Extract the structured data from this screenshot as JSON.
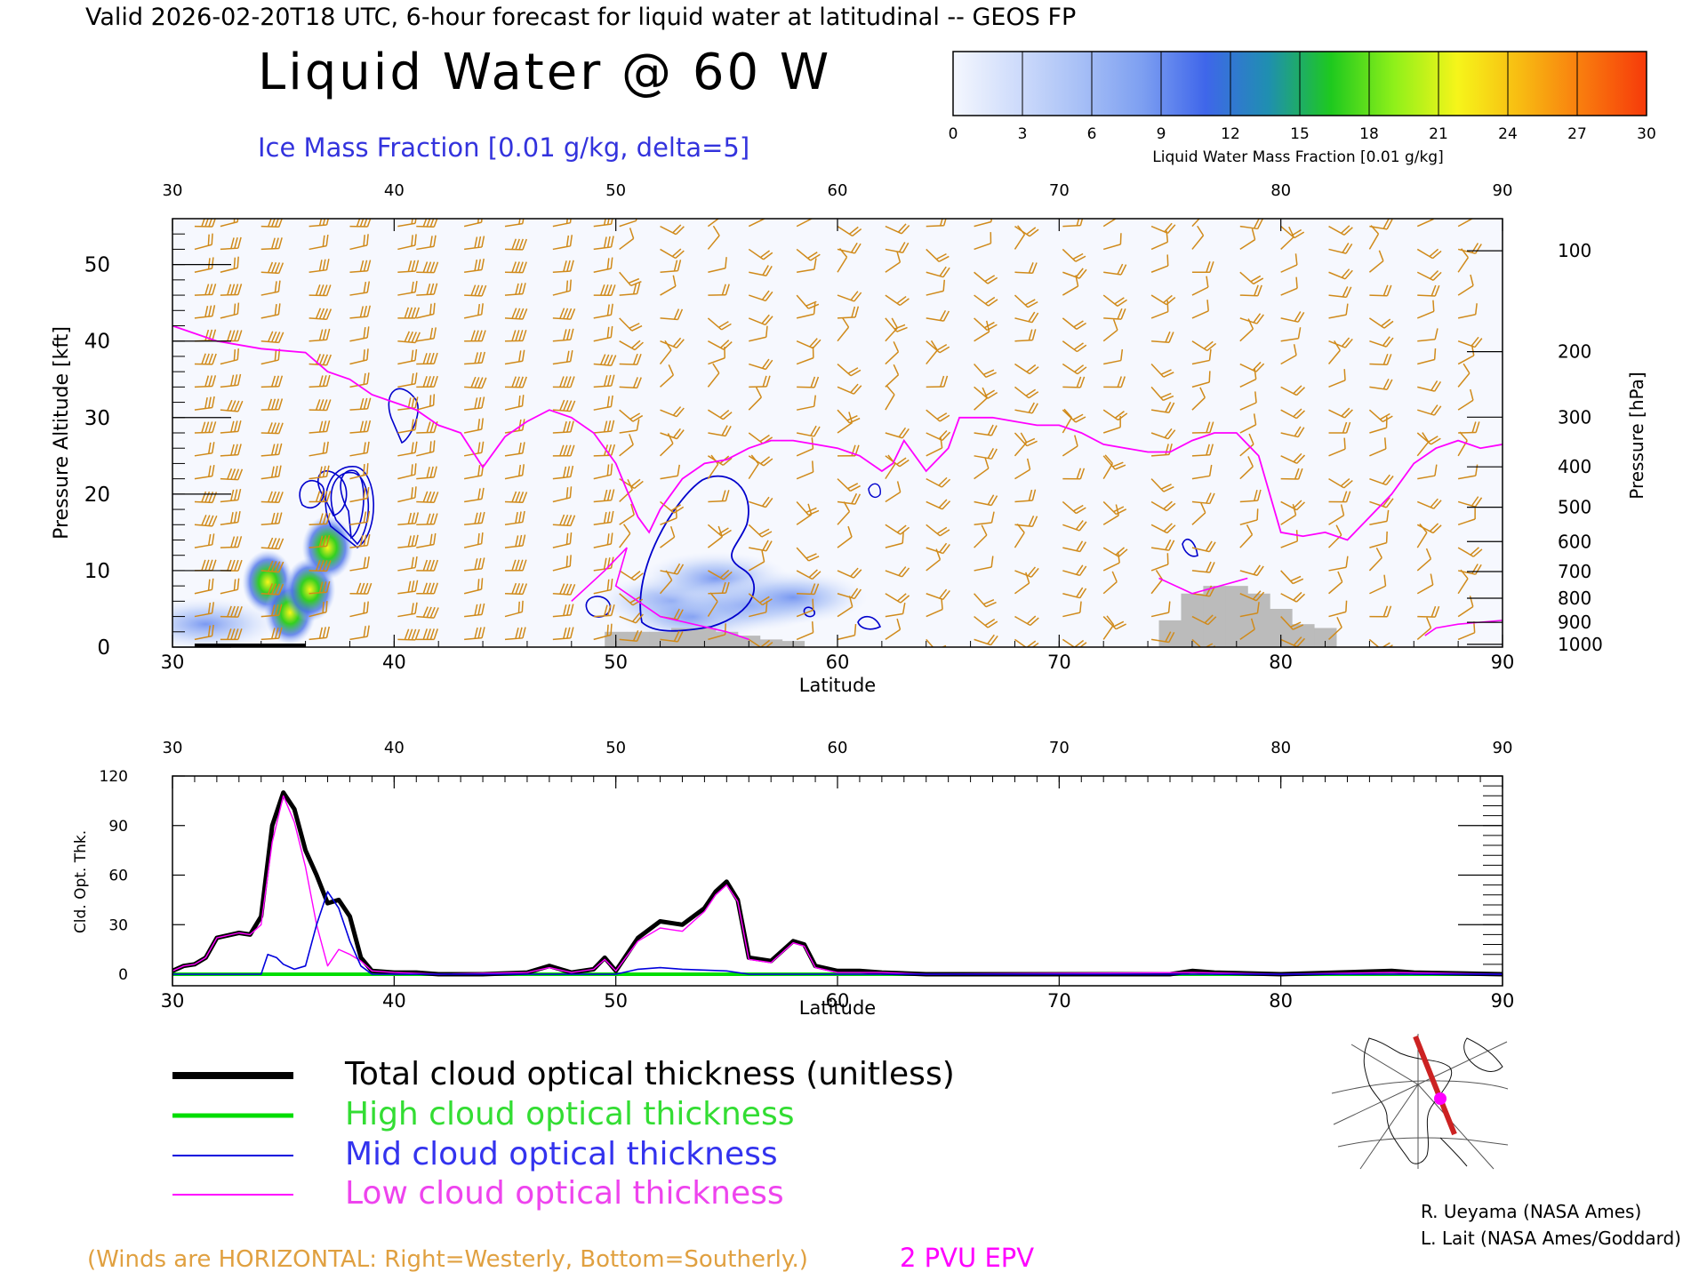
{
  "header": {
    "valid_line": "Valid 2026-02-20T18 UTC, 6-hour forecast for liquid water at latitudinal -- GEOS FP",
    "title": "Liquid Water @ 60 W",
    "ice_label": "Ice Mass Fraction [0.01 g/kg, delta=5]"
  },
  "colorbar": {
    "ticks": [
      "0",
      "3",
      "6",
      "9",
      "12",
      "15",
      "18",
      "21",
      "24",
      "27",
      "30"
    ],
    "label": "Liquid Water Mass Fraction [0.01 g/kg]",
    "colors": [
      "#f4f7fe",
      "#cfdcfb",
      "#a8c0f6",
      "#7d9ff1",
      "#3f66ea",
      "#1f8fb0",
      "#1ec91e",
      "#8ff01a",
      "#f6f51a",
      "#f8bb12",
      "#f97a0e",
      "#f63a0a"
    ]
  },
  "chart_data": [
    {
      "type": "heatmap",
      "xlabel": "Latitude",
      "ylabel": "Pressure Altitude [kft]",
      "y2label": "Pressure [hPa]",
      "xlim": [
        30,
        90
      ],
      "ylim": [
        0,
        56
      ],
      "x_ticks": [
        "30",
        "40",
        "50",
        "60",
        "70",
        "80",
        "90"
      ],
      "y_ticks": [
        "0",
        "10",
        "20",
        "30",
        "40",
        "50"
      ],
      "pressure_ticks": [
        "100",
        "200",
        "300",
        "400",
        "500",
        "600",
        "700",
        "800",
        "900",
        "1000"
      ],
      "liquid_water_blobs": [
        {
          "lat": 34.3,
          "kft": 8.5,
          "value": 24
        },
        {
          "lat": 35.3,
          "kft": 4.5,
          "value": 26
        },
        {
          "lat": 36.2,
          "kft": 7.5,
          "value": 24
        },
        {
          "lat": 37.0,
          "kft": 13.0,
          "value": 26
        },
        {
          "lat": 31.5,
          "kft": 3.0,
          "value": 4
        },
        {
          "lat": 52.5,
          "kft": 6.0,
          "value": 4
        },
        {
          "lat": 54.5,
          "kft": 9.0,
          "value": 3
        },
        {
          "lat": 53.5,
          "kft": 4.0,
          "value": 8
        },
        {
          "lat": 56.0,
          "kft": 5.5,
          "value": 5
        },
        {
          "lat": 58.0,
          "kft": 6.5,
          "value": 3
        }
      ],
      "epv_2pvu_kft": [
        [
          30,
          42
        ],
        [
          32,
          40
        ],
        [
          34,
          39
        ],
        [
          36,
          38.5
        ],
        [
          37,
          36
        ],
        [
          38,
          35
        ],
        [
          39,
          33
        ],
        [
          40,
          32
        ],
        [
          41,
          31
        ],
        [
          42,
          29
        ],
        [
          43,
          28
        ],
        [
          44,
          23.5
        ],
        [
          45,
          27.5
        ],
        [
          46,
          29.5
        ],
        [
          47,
          31
        ],
        [
          48,
          30
        ],
        [
          49,
          28
        ],
        [
          50,
          24
        ],
        [
          51,
          17
        ],
        [
          51.5,
          15
        ],
        [
          52,
          18
        ],
        [
          53,
          22
        ],
        [
          54,
          24
        ],
        [
          55,
          24.5
        ],
        [
          56,
          26
        ],
        [
          57,
          27
        ],
        [
          58,
          27
        ],
        [
          59,
          26.5
        ],
        [
          60,
          26
        ],
        [
          61,
          25
        ],
        [
          62,
          23
        ],
        [
          62.5,
          24
        ],
        [
          63,
          27
        ],
        [
          64,
          23
        ],
        [
          65,
          26
        ],
        [
          65.5,
          30
        ],
        [
          67,
          30
        ],
        [
          68,
          29.5
        ],
        [
          69,
          29
        ],
        [
          70,
          29
        ],
        [
          71,
          28
        ],
        [
          72,
          26.5
        ],
        [
          73,
          26
        ],
        [
          74,
          25.5
        ],
        [
          75,
          25.5
        ],
        [
          76,
          27
        ],
        [
          77,
          28
        ],
        [
          78,
          28
        ],
        [
          79,
          25
        ],
        [
          80,
          15
        ],
        [
          81,
          14.5
        ],
        [
          82,
          15
        ],
        [
          83,
          14
        ],
        [
          84,
          17
        ],
        [
          85,
          20
        ],
        [
          86,
          24
        ],
        [
          87,
          26
        ],
        [
          88,
          27
        ],
        [
          89,
          26
        ],
        [
          90,
          26.5
        ]
      ],
      "terrain_kft": [
        [
          50,
          2
        ],
        [
          51,
          2
        ],
        [
          52,
          2
        ],
        [
          53,
          2.5
        ],
        [
          54,
          2.5
        ],
        [
          55,
          2
        ],
        [
          56,
          1.5
        ],
        [
          57,
          1
        ],
        [
          58,
          0.8
        ],
        [
          75,
          3.5
        ],
        [
          76,
          7
        ],
        [
          77,
          8
        ],
        [
          78,
          8
        ],
        [
          79,
          7
        ],
        [
          80,
          5
        ],
        [
          81,
          3
        ],
        [
          82,
          2.5
        ]
      ],
      "wind_columns_lat": [
        31,
        32,
        34,
        36,
        38,
        40,
        41,
        43,
        45,
        47,
        49,
        50,
        52,
        54,
        56,
        58,
        60,
        62,
        64,
        66,
        68,
        70,
        72,
        74,
        76,
        78,
        80,
        82,
        84,
        86,
        88
      ]
    },
    {
      "type": "line",
      "xlabel": "Latitude",
      "ylabel": "Cld. Opt. Thk.",
      "xlim": [
        30,
        90
      ],
      "ylim": [
        0,
        120
      ],
      "x_ticks": [
        "30",
        "40",
        "50",
        "60",
        "70",
        "80",
        "90"
      ],
      "y_ticks": [
        "0",
        "30",
        "60",
        "90",
        "120"
      ],
      "series": [
        {
          "name": "Total cloud optical thickness (unitless)",
          "color": "#000000",
          "points": [
            [
              30,
              2
            ],
            [
              30.5,
              5
            ],
            [
              31,
              6
            ],
            [
              31.5,
              10
            ],
            [
              32,
              22
            ],
            [
              33,
              25
            ],
            [
              33.5,
              24
            ],
            [
              34,
              35
            ],
            [
              34.5,
              90
            ],
            [
              35,
              110
            ],
            [
              35.5,
              100
            ],
            [
              36,
              75
            ],
            [
              36.5,
              60
            ],
            [
              37,
              43
            ],
            [
              37.5,
              45
            ],
            [
              38,
              35
            ],
            [
              38.5,
              10
            ],
            [
              39,
              2
            ],
            [
              40,
              1
            ],
            [
              41,
              1
            ],
            [
              42,
              0
            ],
            [
              44,
              0
            ],
            [
              46,
              1
            ],
            [
              47,
              5
            ],
            [
              47.5,
              3
            ],
            [
              48,
              1
            ],
            [
              49,
              3
            ],
            [
              49.5,
              10
            ],
            [
              50,
              2
            ],
            [
              50.5,
              12
            ],
            [
              51,
              22
            ],
            [
              52,
              32
            ],
            [
              53,
              30
            ],
            [
              53.5,
              35
            ],
            [
              54,
              40
            ],
            [
              54.5,
              50
            ],
            [
              55,
              56
            ],
            [
              55.5,
              45
            ],
            [
              56,
              10
            ],
            [
              57,
              8
            ],
            [
              58,
              20
            ],
            [
              58.5,
              18
            ],
            [
              59,
              5
            ],
            [
              60,
              2
            ],
            [
              61,
              2
            ],
            [
              62,
              1
            ],
            [
              64,
              0
            ],
            [
              70,
              0
            ],
            [
              75,
              0
            ],
            [
              76,
              2
            ],
            [
              77,
              1
            ],
            [
              80,
              0
            ],
            [
              85,
              2
            ],
            [
              86,
              1
            ],
            [
              90,
              0
            ]
          ]
        },
        {
          "name": "High cloud optical thickness",
          "color": "#00dd00",
          "points": [
            [
              30,
              0
            ],
            [
              90,
              0
            ]
          ]
        },
        {
          "name": "Mid cloud optical thickness",
          "color": "#0000dd",
          "points": [
            [
              30,
              0
            ],
            [
              34,
              0
            ],
            [
              34.3,
              12
            ],
            [
              34.7,
              10
            ],
            [
              35,
              6
            ],
            [
              35.5,
              3
            ],
            [
              36,
              5
            ],
            [
              36.5,
              30
            ],
            [
              37,
              50
            ],
            [
              37.5,
              40
            ],
            [
              38,
              20
            ],
            [
              38.5,
              5
            ],
            [
              39,
              0
            ],
            [
              50,
              0
            ],
            [
              51,
              3
            ],
            [
              52,
              4
            ],
            [
              53,
              3
            ],
            [
              55,
              2
            ],
            [
              56,
              0
            ],
            [
              60,
              0
            ],
            [
              90,
              0
            ]
          ]
        },
        {
          "name": "Low cloud optical thickness",
          "color": "#ff00ff",
          "points": [
            [
              30,
              2
            ],
            [
              30.5,
              5
            ],
            [
              31,
              6
            ],
            [
              31.5,
              10
            ],
            [
              32,
              22
            ],
            [
              33,
              25
            ],
            [
              33.5,
              24
            ],
            [
              34,
              30
            ],
            [
              34.5,
              80
            ],
            [
              35,
              108
            ],
            [
              35.5,
              92
            ],
            [
              36,
              65
            ],
            [
              36.5,
              30
            ],
            [
              37,
              5
            ],
            [
              37.5,
              15
            ],
            [
              38,
              12
            ],
            [
              38.5,
              8
            ],
            [
              39,
              2
            ],
            [
              40,
              1
            ],
            [
              42,
              0
            ],
            [
              46,
              1
            ],
            [
              47,
              4
            ],
            [
              48,
              1
            ],
            [
              49,
              3
            ],
            [
              49.5,
              9
            ],
            [
              50,
              2
            ],
            [
              50.5,
              11
            ],
            [
              51,
              20
            ],
            [
              52,
              28
            ],
            [
              53,
              26
            ],
            [
              53.5,
              32
            ],
            [
              54,
              38
            ],
            [
              54.5,
              48
            ],
            [
              55,
              54
            ],
            [
              55.5,
              44
            ],
            [
              56,
              9
            ],
            [
              57,
              7
            ],
            [
              58,
              19
            ],
            [
              58.5,
              17
            ],
            [
              59,
              4
            ],
            [
              60,
              1
            ],
            [
              62,
              1
            ],
            [
              64,
              0
            ],
            [
              76,
              1
            ],
            [
              80,
              0
            ],
            [
              85,
              1
            ],
            [
              90,
              0
            ]
          ]
        }
      ]
    }
  ],
  "legend": {
    "total": "Total cloud optical thickness (unitless)",
    "high": "High cloud optical thickness",
    "mid": "Mid cloud optical thickness",
    "low": "Low cloud optical thickness"
  },
  "footer": {
    "winds_note": "(Winds are HORIZONTAL: Right=Westerly, Bottom=Southerly.)",
    "epv_label": "2 PVU EPV",
    "credit1": "R. Ueyama (NASA Ames)",
    "credit2": "L. Lait (NASA Ames/Goddard)"
  },
  "colors": {
    "wind": "#d08a1a",
    "epv": "#ff00ff",
    "ice": "#0000cc",
    "terrain": "#bbbbbb",
    "legend_high": "#00dd00",
    "legend_mid": "#0000dd",
    "legend_low": "#ff00ff",
    "legend_winds": "#d08a1a"
  }
}
